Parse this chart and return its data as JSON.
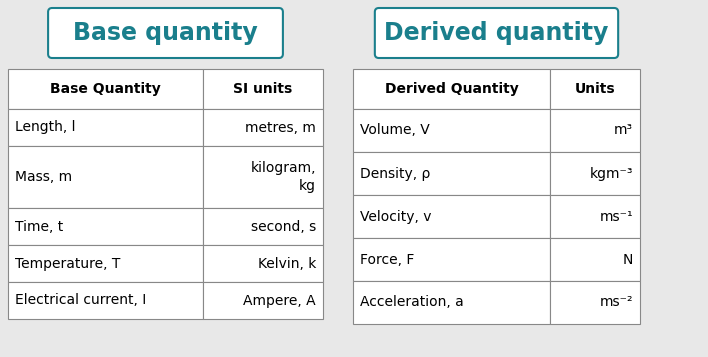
{
  "title_left": "Base quantity",
  "title_right": "Derived quantity",
  "title_color": "#1a7f8c",
  "title_border_color": "#1a7f8c",
  "base_headers": [
    "Base Quantity",
    "SI units"
  ],
  "base_rows": [
    [
      "Length, l",
      "metres, m"
    ],
    [
      "Mass, m",
      "kilogram,\nkg"
    ],
    [
      "Time, t",
      "second, s"
    ],
    [
      "Temperature, T",
      "Kelvin, k"
    ],
    [
      "Electrical current, I",
      "Ampere, A"
    ]
  ],
  "derived_headers": [
    "Derived Quantity",
    "Units"
  ],
  "derived_rows": [
    [
      "Volume, V",
      "m³"
    ],
    [
      "Density, ρ",
      "kgm⁻³"
    ],
    [
      "Velocity, v",
      "ms⁻¹"
    ],
    [
      "Force, F",
      "N"
    ],
    [
      "Acceleration, a",
      "ms⁻²"
    ]
  ],
  "bg_color": "#e8e8e8",
  "table_line_color": "#888888",
  "header_font_size": 10,
  "body_font_size": 10,
  "title_font_size": 17,
  "fig_w": 7.08,
  "fig_h": 3.57,
  "dpi": 100
}
